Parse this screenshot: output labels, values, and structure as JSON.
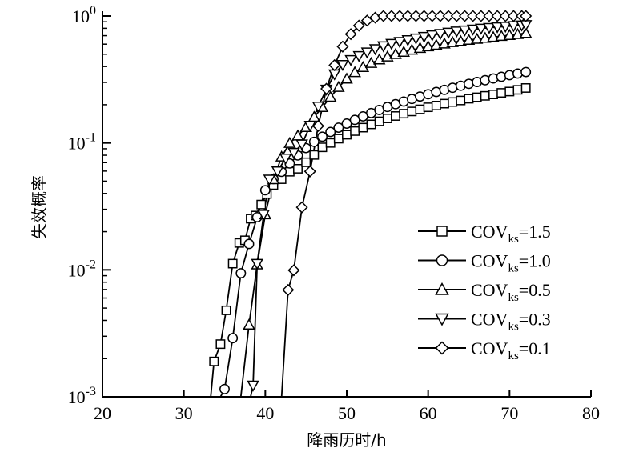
{
  "chart_data": {
    "type": "line",
    "xlabel": "降雨历时/h",
    "ylabel": "失效概率",
    "xlim": [
      20,
      80
    ],
    "ylim": [
      0.001,
      1
    ],
    "yscale": "log",
    "xticks": [
      "20",
      "30",
      "40",
      "50",
      "60",
      "70",
      "80"
    ],
    "yticks": [
      {
        "base": "10",
        "exp": "0"
      },
      {
        "base": "10",
        "exp": "-1"
      },
      {
        "base": "10",
        "exp": "-2"
      },
      {
        "base": "10",
        "exp": "-3"
      }
    ],
    "legend_position": "bottom-right",
    "series": [
      {
        "name": "COVks=1.5",
        "label_main": "COV",
        "label_sub": "ks",
        "label_value": "=1.5",
        "marker": "square",
        "x": [
          33.3,
          33.7,
          34.5,
          35.2,
          36.0,
          36.8,
          37.5,
          38.2,
          38.8,
          39.5,
          40.2,
          41.0,
          42.0,
          43.0,
          44.0,
          45.0,
          46.0,
          47.0,
          48.0,
          49.0,
          50.0,
          51.0,
          52.0,
          53.0,
          54.0,
          55.0,
          56.0,
          57.0,
          58.0,
          59.0,
          60.0,
          61.0,
          62.0,
          63.0,
          64.0,
          65.0,
          66.0,
          67.0,
          68.0,
          69.0,
          70.0,
          71.0,
          72.0
        ],
        "y": [
          0.001,
          0.0019,
          0.0026,
          0.0048,
          0.0112,
          0.0163,
          0.0171,
          0.0253,
          0.0268,
          0.0327,
          0.0396,
          0.0466,
          0.0518,
          0.0593,
          0.0626,
          0.0704,
          0.0804,
          0.0923,
          0.1,
          0.108,
          0.116,
          0.124,
          0.132,
          0.14,
          0.148,
          0.156,
          0.163,
          0.17,
          0.177,
          0.184,
          0.191,
          0.197,
          0.204,
          0.21,
          0.216,
          0.223,
          0.229,
          0.235,
          0.241,
          0.248,
          0.254,
          0.262,
          0.271
        ]
      },
      {
        "name": "COVks=1.0",
        "label_main": "COV",
        "label_sub": "ks",
        "label_value": "=1.0",
        "marker": "circle",
        "x": [
          34.5,
          35.0,
          36.0,
          37.0,
          38.0,
          39.0,
          40.0,
          41.0,
          42.0,
          43.0,
          44.0,
          45.0,
          46.0,
          47.0,
          48.0,
          49.0,
          50.0,
          51.0,
          52.0,
          53.0,
          54.0,
          55.0,
          56.0,
          57.0,
          58.0,
          59.0,
          60.0,
          61.0,
          62.0,
          63.0,
          64.0,
          65.0,
          66.0,
          67.0,
          68.0,
          69.0,
          70.0,
          71.0,
          72.0
        ],
        "y": [
          0.001,
          0.00115,
          0.0029,
          0.0094,
          0.016,
          0.026,
          0.0424,
          0.0519,
          0.0592,
          0.0689,
          0.0797,
          0.0912,
          0.102,
          0.112,
          0.122,
          0.132,
          0.142,
          0.152,
          0.162,
          0.172,
          0.182,
          0.192,
          0.202,
          0.212,
          0.222,
          0.232,
          0.242,
          0.252,
          0.262,
          0.272,
          0.282,
          0.292,
          0.302,
          0.312,
          0.322,
          0.332,
          0.342,
          0.352,
          0.362
        ]
      },
      {
        "name": "COVks=0.5",
        "label_main": "COV",
        "label_sub": "ks",
        "label_value": "=0.5",
        "marker": "triangle-up",
        "x": [
          36.8,
          37.0,
          38.0,
          39.0,
          40.0,
          41.0,
          42.0,
          43.0,
          44.0,
          45.0,
          46.0,
          47.0,
          48.0,
          49.0,
          50.0,
          51.0,
          52.0,
          53.0,
          54.0,
          55.0,
          56.0,
          57.0,
          58.0,
          59.0,
          60.0,
          61.0,
          62.0,
          63.0,
          64.0,
          65.0,
          66.0,
          67.0,
          68.0,
          69.0,
          70.0,
          71.0,
          72.0
        ],
        "y": [
          0.001,
          0.001,
          0.00369,
          0.011,
          0.0273,
          0.0516,
          0.0778,
          0.0996,
          0.114,
          0.133,
          0.16,
          0.191,
          0.23,
          0.275,
          0.32,
          0.36,
          0.395,
          0.425,
          0.453,
          0.478,
          0.5,
          0.52,
          0.54,
          0.558,
          0.575,
          0.59,
          0.605,
          0.62,
          0.633,
          0.646,
          0.658,
          0.67,
          0.682,
          0.694,
          0.706,
          0.718,
          0.732
        ]
      },
      {
        "name": "COVks=0.3",
        "label_main": "COV",
        "label_sub": "ks",
        "label_value": "=0.3",
        "marker": "triangle-down",
        "x": [
          38.2,
          38.5,
          39.0,
          39.8,
          40.5,
          41.5,
          42.5,
          43.5,
          44.5,
          45.5,
          46.5,
          47.5,
          48.5,
          49.5,
          50.5,
          51.5,
          52.5,
          53.5,
          54.5,
          55.5,
          56.5,
          57.5,
          58.5,
          59.5,
          60.5,
          61.5,
          62.5,
          63.5,
          64.5,
          65.5,
          66.5,
          67.5,
          68.5,
          69.5,
          70.5,
          71.5,
          72.0
        ],
        "y": [
          0.001,
          0.00123,
          0.0112,
          0.0273,
          0.0516,
          0.0599,
          0.0756,
          0.0838,
          0.0977,
          0.137,
          0.194,
          0.264,
          0.348,
          0.413,
          0.451,
          0.485,
          0.518,
          0.55,
          0.58,
          0.605,
          0.627,
          0.648,
          0.668,
          0.688,
          0.708,
          0.725,
          0.742,
          0.758,
          0.772,
          0.785,
          0.797,
          0.808,
          0.818,
          0.827,
          0.836,
          0.845,
          0.851
        ]
      },
      {
        "name": "COVks=0.1",
        "label_main": "COV",
        "label_sub": "ks",
        "label_value": "=0.1",
        "marker": "diamond",
        "x": [
          42.0,
          42.8,
          43.5,
          44.5,
          45.5,
          46.5,
          47.5,
          48.5,
          49.5,
          50.5,
          51.5,
          52.5,
          53.5,
          54.5,
          55.5,
          56.5,
          57.5,
          58.5,
          59.5,
          60.5,
          61.5,
          62.5,
          63.5,
          64.5,
          65.5,
          66.5,
          67.5,
          68.5,
          69.5,
          70.5,
          71.5,
          72.0
        ],
        "y": [
          0.001,
          0.00695,
          0.00993,
          0.0311,
          0.0597,
          0.136,
          0.267,
          0.41,
          0.574,
          0.72,
          0.84,
          0.92,
          0.97,
          1.0,
          1.0,
          1.0,
          1.0,
          1.0,
          1.0,
          1.0,
          1.0,
          1.0,
          1.0,
          1.0,
          1.0,
          1.0,
          1.0,
          1.0,
          1.0,
          1.0,
          1.0,
          1.0
        ]
      }
    ]
  }
}
